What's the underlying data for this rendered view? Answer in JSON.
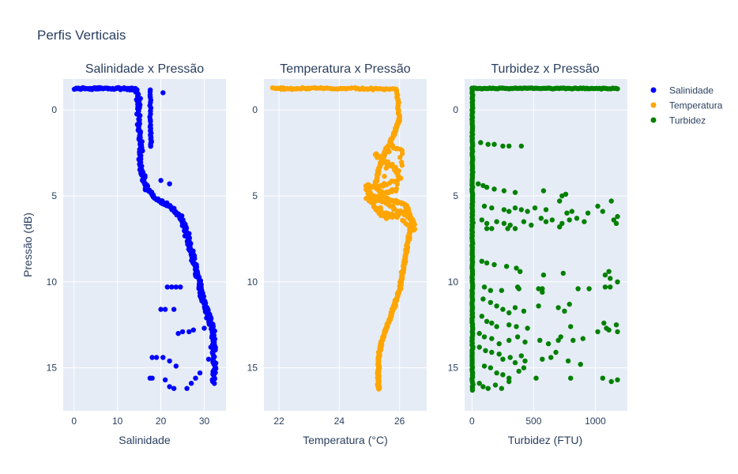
{
  "title": "Perfis Verticais",
  "chart_data": [
    {
      "type": "scatter",
      "title": "Salinidade x Pressão",
      "xlabel": "Salinidade",
      "ylabel": "Pressão (dB)",
      "xlim": [
        -2.5,
        35
      ],
      "ylim": [
        17.5,
        -1.8
      ],
      "xticks": [
        0,
        10,
        20,
        30
      ],
      "yticks": [
        0,
        5,
        10,
        15
      ],
      "series": [
        {
          "name": "Salinidade",
          "color": "#0000ff",
          "profile": [
            [
              0,
              -1.25
            ],
            [
              5,
              -1.25
            ],
            [
              10,
              -1.25
            ],
            [
              14.5,
              -1.2
            ],
            [
              15,
              0.5
            ],
            [
              15.2,
              2
            ],
            [
              15.4,
              3.5
            ],
            [
              16.5,
              4.5
            ],
            [
              19,
              5.2
            ],
            [
              22,
              5.6
            ],
            [
              24.5,
              6.2
            ],
            [
              26,
              7.2
            ],
            [
              27,
              8.2
            ],
            [
              28,
              9.2
            ],
            [
              29,
              10.2
            ],
            [
              30,
              11.2
            ],
            [
              31,
              12
            ],
            [
              32,
              12.8
            ],
            [
              32.2,
              14
            ],
            [
              32.2,
              16
            ]
          ],
          "profile2": [
            [
              17.5,
              -1.2
            ],
            [
              17.6,
              1
            ],
            [
              17.7,
              2.2
            ]
          ],
          "extra": [
            [
              6,
              -1.3
            ],
            [
              20.5,
              -1.0
            ],
            [
              1.5,
              -1.2
            ],
            [
              17.5,
              -0.8
            ],
            [
              20,
              4.1
            ],
            [
              22,
              4.3
            ],
            [
              21.5,
              10.3
            ],
            [
              22.5,
              10.3
            ],
            [
              23.5,
              10.3
            ],
            [
              24.5,
              10.3
            ],
            [
              20,
              11.6
            ],
            [
              21,
              11.6
            ],
            [
              23,
              11.6
            ],
            [
              24,
              13
            ],
            [
              25,
              12.9
            ],
            [
              26.5,
              12.9
            ],
            [
              27.5,
              12.8
            ],
            [
              18,
              14.4
            ],
            [
              19,
              14.4
            ],
            [
              20.5,
              14.4
            ],
            [
              22,
              14.6
            ],
            [
              23.5,
              14.9
            ],
            [
              17.5,
              15.6
            ],
            [
              18,
              15.6
            ],
            [
              21,
              15.7
            ],
            [
              22,
              16.1
            ],
            [
              23,
              16.2
            ],
            [
              26,
              16.2
            ],
            [
              27,
              15.9
            ],
            [
              28,
              15.6
            ],
            [
              29,
              15.3
            ],
            [
              31,
              14.5
            ],
            [
              31.5,
              13.8
            ],
            [
              30,
              12.7
            ]
          ]
        }
      ]
    },
    {
      "type": "scatter",
      "title": "Temperatura x Pressão",
      "xlabel": "Temperatura (°C)",
      "ylim": [
        17.5,
        -1.8
      ],
      "xlim": [
        21.5,
        26.9
      ],
      "xticks": [
        22,
        24,
        26
      ],
      "yticks": [
        0,
        5,
        10,
        15
      ],
      "series": [
        {
          "name": "Temperatura",
          "color": "#ffa500",
          "profile": [
            [
              21.8,
              -1.25
            ],
            [
              23,
              -1.25
            ],
            [
              24.5,
              -1.25
            ],
            [
              25.9,
              -1.2
            ],
            [
              26,
              0.5
            ],
            [
              25.8,
              1.5
            ],
            [
              25.5,
              2.5
            ],
            [
              25.3,
              3.5
            ],
            [
              25.2,
              4.5
            ],
            [
              25.6,
              5.2
            ],
            [
              26.2,
              5.5
            ],
            [
              26.4,
              6.5
            ],
            [
              26.3,
              7.5
            ],
            [
              26.2,
              8.5
            ],
            [
              26.1,
              9.5
            ],
            [
              26,
              10.5
            ],
            [
              25.8,
              11.5
            ],
            [
              25.6,
              12.5
            ],
            [
              25.4,
              13.5
            ],
            [
              25.3,
              14.5
            ],
            [
              25.3,
              15.5
            ],
            [
              25.3,
              16.3
            ]
          ],
          "band": [
            [
              25.2,
              2.5
            ],
            [
              25.5,
              3
            ],
            [
              25.8,
              3.3
            ],
            [
              26.0,
              4
            ],
            [
              25.3,
              4.5
            ],
            [
              24.9,
              4.4
            ],
            [
              25.0,
              5.0
            ],
            [
              25.5,
              5.3
            ],
            [
              25.9,
              5.8
            ],
            [
              26.4,
              6.3
            ],
            [
              26.5,
              7
            ],
            [
              25.9,
              6.2
            ],
            [
              25.3,
              6.0
            ],
            [
              25.1,
              5.4
            ],
            [
              24.9,
              5.1
            ],
            [
              25.6,
              4.8
            ],
            [
              25.9,
              4.6
            ],
            [
              26.1,
              2.5
            ],
            [
              25.7,
              2.0
            ],
            [
              25.3,
              5.7
            ],
            [
              25.6,
              6.3
            ],
            [
              26.3,
              5.8
            ]
          ]
        }
      ]
    },
    {
      "type": "scatter",
      "title": "Turbidez x Pressão",
      "xlabel": "Turbidez (FTU)",
      "ylim": [
        17.5,
        -1.8
      ],
      "xlim": [
        -60,
        1260
      ],
      "xticks": [
        0,
        500,
        1000
      ],
      "yticks": [
        0,
        5,
        10,
        15
      ],
      "series": [
        {
          "name": "Turbidez",
          "color": "#008000",
          "surface": [
            [
              0,
              1180
            ],
            -1.25
          ],
          "core_x": [
            0,
            10
          ],
          "core_y": [
            -1.2,
            16.3
          ],
          "extra": [
            [
              70,
              1.9
            ],
            [
              130,
              2.0
            ],
            [
              180,
              2.0
            ],
            [
              250,
              2.1
            ],
            [
              300,
              2.1
            ],
            [
              400,
              2.1
            ],
            [
              50,
              4.3
            ],
            [
              90,
              4.4
            ],
            [
              120,
              4.5
            ],
            [
              180,
              4.6
            ],
            [
              260,
              4.7
            ],
            [
              350,
              4.8
            ],
            [
              580,
              4.7
            ],
            [
              730,
              5.0
            ],
            [
              760,
              4.9
            ],
            [
              710,
              5.3
            ],
            [
              100,
              5.6
            ],
            [
              160,
              5.7
            ],
            [
              260,
              5.8
            ],
            [
              300,
              5.9
            ],
            [
              350,
              5.7
            ],
            [
              400,
              5.8
            ],
            [
              450,
              5.9
            ],
            [
              510,
              5.7
            ],
            [
              600,
              5.8
            ],
            [
              770,
              6.0
            ],
            [
              810,
              5.9
            ],
            [
              940,
              6.0
            ],
            [
              1020,
              5.6
            ],
            [
              1060,
              5.9
            ],
            [
              1130,
              5.3
            ],
            [
              1150,
              6.4
            ],
            [
              1180,
              6.2
            ],
            [
              1170,
              6.6
            ],
            [
              80,
              6.4
            ],
            [
              120,
              6.6
            ],
            [
              200,
              6.5
            ],
            [
              260,
              6.6
            ],
            [
              420,
              6.5
            ],
            [
              480,
              6.7
            ],
            [
              560,
              6.3
            ],
            [
              650,
              6.4
            ],
            [
              730,
              6.6
            ],
            [
              790,
              6.4
            ],
            [
              850,
              6.3
            ],
            [
              910,
              6.5
            ],
            [
              120,
              6.9
            ],
            [
              160,
              6.9
            ],
            [
              290,
              6.9
            ],
            [
              310,
              6.7
            ],
            [
              350,
              6.9
            ],
            [
              600,
              6.5
            ],
            [
              710,
              6.8
            ],
            [
              80,
              8.8
            ],
            [
              120,
              8.9
            ],
            [
              180,
              9.0
            ],
            [
              280,
              9.1
            ],
            [
              360,
              9.2
            ],
            [
              390,
              9.4
            ],
            [
              580,
              9.6
            ],
            [
              740,
              9.5
            ],
            [
              1080,
              9.6
            ],
            [
              1110,
              9.4
            ],
            [
              1120,
              9.8
            ],
            [
              1180,
              10.0
            ],
            [
              100,
              10.3
            ],
            [
              150,
              10.5
            ],
            [
              240,
              10.5
            ],
            [
              370,
              10.3
            ],
            [
              380,
              10.4
            ],
            [
              540,
              10.4
            ],
            [
              570,
              10.6
            ],
            [
              570,
              10.4
            ],
            [
              860,
              10.4
            ],
            [
              950,
              10.4
            ],
            [
              1080,
              10.3
            ],
            [
              1120,
              10.3
            ],
            [
              90,
              11.0
            ],
            [
              150,
              11.2
            ],
            [
              200,
              11.4
            ],
            [
              250,
              11.6
            ],
            [
              300,
              11.8
            ],
            [
              350,
              11.5
            ],
            [
              420,
              11.7
            ],
            [
              540,
              11.4
            ],
            [
              700,
              11.5
            ],
            [
              750,
              11.7
            ],
            [
              790,
              11.3
            ],
            [
              80,
              12.0
            ],
            [
              120,
              12.3
            ],
            [
              160,
              12.4
            ],
            [
              200,
              12.6
            ],
            [
              300,
              12.5
            ],
            [
              360,
              12.6
            ],
            [
              450,
              12.7
            ],
            [
              800,
              12.6
            ],
            [
              1070,
              12.4
            ],
            [
              1110,
              12.8
            ],
            [
              1170,
              12.5
            ],
            [
              1180,
              12.9
            ],
            [
              60,
              13.0
            ],
            [
              100,
              13.2
            ],
            [
              160,
              13.3
            ],
            [
              220,
              13.6
            ],
            [
              300,
              13.4
            ],
            [
              370,
              13.2
            ],
            [
              430,
              13.5
            ],
            [
              550,
              13.4
            ],
            [
              620,
              13.6
            ],
            [
              700,
              13.4
            ],
            [
              720,
              13.2
            ],
            [
              820,
              13.4
            ],
            [
              900,
              13.3
            ],
            [
              1020,
              12.9
            ],
            [
              1090,
              12.7
            ],
            [
              60,
              13.8
            ],
            [
              110,
              14.0
            ],
            [
              160,
              14.1
            ],
            [
              220,
              14.2
            ],
            [
              250,
              14.5
            ],
            [
              310,
              14.4
            ],
            [
              350,
              14.7
            ],
            [
              400,
              14.3
            ],
            [
              430,
              14.6
            ],
            [
              570,
              14.5
            ],
            [
              640,
              14.4
            ],
            [
              680,
              14.1
            ],
            [
              780,
              14.6
            ],
            [
              880,
              14.8
            ],
            [
              100,
              14.9
            ],
            [
              150,
              15.0
            ],
            [
              200,
              15.3
            ],
            [
              250,
              15.4
            ],
            [
              300,
              15.6
            ],
            [
              380,
              15.2
            ],
            [
              420,
              15.0
            ],
            [
              520,
              15.6
            ],
            [
              800,
              15.6
            ],
            [
              1060,
              15.6
            ],
            [
              1130,
              15.8
            ],
            [
              1180,
              15.7
            ],
            [
              60,
              15.9
            ],
            [
              90,
              16.1
            ],
            [
              130,
              16.2
            ],
            [
              190,
              16.0
            ],
            [
              240,
              16.2
            ],
            [
              300,
              15.8
            ]
          ]
        }
      ]
    }
  ],
  "legend": {
    "placement": "top-right",
    "items": [
      {
        "label": "Salinidade",
        "color": "#0000ff"
      },
      {
        "label": "Temperatura",
        "color": "#ffa500"
      },
      {
        "label": "Turbidez",
        "color": "#008000"
      }
    ]
  }
}
